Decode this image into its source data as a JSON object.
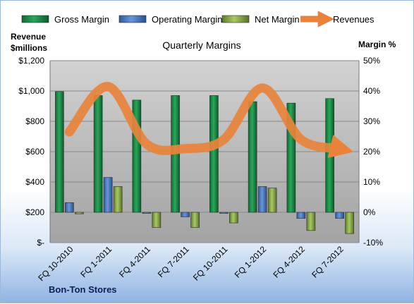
{
  "chart_data": {
    "type": "bar",
    "title": "Quarterly Margins",
    "footer": "Bon-Ton Stores",
    "left_axis_title_lines": [
      "Revenue",
      "$millions"
    ],
    "right_axis_title": "Margin %",
    "categories": [
      "FQ 10-2010",
      "FQ 1-2011",
      "FQ 4-2011",
      "FQ 7-2011",
      "FQ 10-2011",
      "FQ 1-2012",
      "FQ 4-2012",
      "FQ 7-2012"
    ],
    "left_axis": {
      "min": 0,
      "max": 1200,
      "step": 200,
      "tick_labels": [
        "$-",
        "$200",
        "$400",
        "$600",
        "$800",
        "$1,000",
        "$1,200"
      ]
    },
    "right_axis": {
      "min": -10,
      "max": 50,
      "step": 10,
      "tick_labels": [
        "-10%",
        "0%",
        "10%",
        "20%",
        "30%",
        "40%",
        "50%"
      ]
    },
    "series": [
      {
        "name": "Gross Margin",
        "axis": "right",
        "kind": "bar",
        "color": "#1f8f4a",
        "values": [
          39.8,
          38.5,
          37.0,
          38.5,
          38.5,
          36.5,
          36.0,
          37.5
        ]
      },
      {
        "name": "Operating Margin",
        "axis": "right",
        "kind": "bar",
        "color": "#4f7cc3",
        "values": [
          3.2,
          11.5,
          0.0,
          -1.5,
          0.0,
          8.5,
          -2.0,
          -2.0
        ]
      },
      {
        "name": "Net Margin",
        "axis": "right",
        "kind": "bar",
        "color": "#8fb04a",
        "values": [
          -0.5,
          8.5,
          -5.0,
          -5.0,
          -3.5,
          8.0,
          -6.0,
          -7.0
        ]
      },
      {
        "name": "Revenues",
        "axis": "left",
        "kind": "line",
        "color": "#e9833b",
        "values": [
          730,
          1030,
          650,
          620,
          680,
          1020,
          680,
          620
        ]
      }
    ],
    "grid": true,
    "legend_position": "top"
  }
}
